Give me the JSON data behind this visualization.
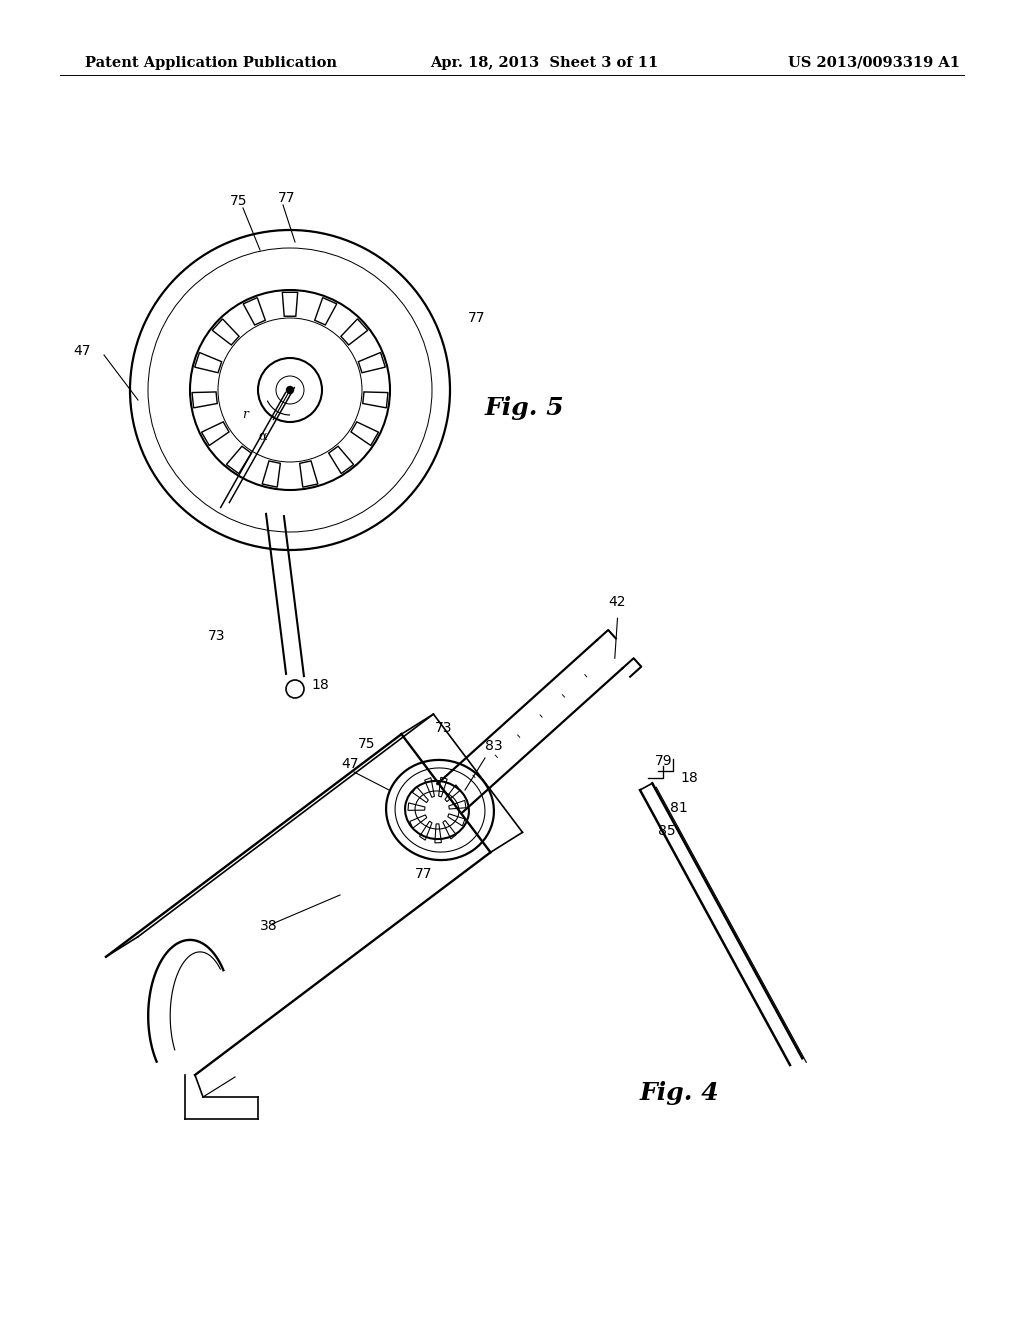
{
  "background_color": "#ffffff",
  "header_left": "Patent Application Publication",
  "header_center": "Apr. 18, 2013  Sheet 3 of 11",
  "header_right": "US 2013/0093319 A1",
  "header_fontsize": 10.5,
  "fig5_label": "Fig. 5",
  "fig4_label": "Fig. 4",
  "line_color": "#000000",
  "line_width": 1.2,
  "label_fontsize": 10,
  "fig_label_fontsize": 18
}
